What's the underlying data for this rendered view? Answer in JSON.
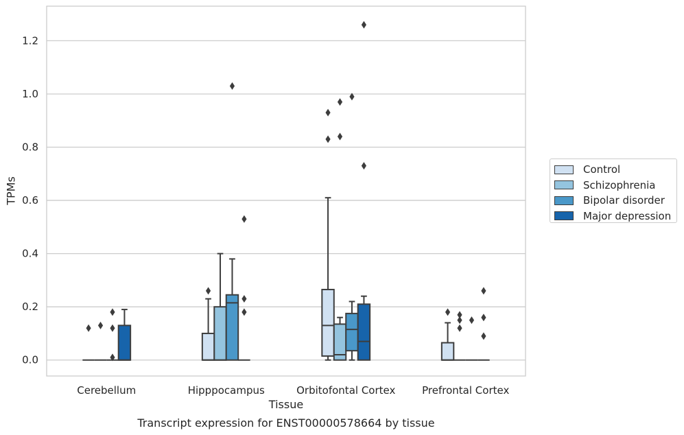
{
  "chart_data": {
    "type": "box",
    "caption": "Transcript expression for ENST00000578664 by tissue",
    "xlabel": "Tissue",
    "ylabel": "TPMs",
    "ylim": [
      -0.06,
      1.33
    ],
    "yticks": [
      "0.0",
      "0.2",
      "0.4",
      "0.6",
      "0.8",
      "1.0",
      "1.2"
    ],
    "ytick_values": [
      0.0,
      0.2,
      0.4,
      0.6,
      0.8,
      1.0,
      1.2
    ],
    "grid": true,
    "legend_position": "right",
    "categories": [
      "Cerebellum",
      "Hipppocampus",
      "Orbitofontal Cortex",
      "Prefrontal Cortex"
    ],
    "series": [
      {
        "name": "Control",
        "color": "#d0e1f2",
        "boxes": [
          {
            "q1": 0,
            "median": 0,
            "q3": 0,
            "whislo": 0,
            "whishi": 0,
            "fliers": [
              0.12
            ]
          },
          {
            "q1": 0,
            "median": 0,
            "q3": 0.1,
            "whislo": 0,
            "whishi": 0.23,
            "fliers": [
              0.26
            ]
          },
          {
            "q1": 0.015,
            "median": 0.13,
            "q3": 0.265,
            "whislo": 0,
            "whishi": 0.61,
            "fliers": [
              0.83,
              0.93
            ]
          },
          {
            "q1": 0,
            "median": 0,
            "q3": 0.065,
            "whislo": 0,
            "whishi": 0.14,
            "fliers": [
              0.18
            ]
          }
        ]
      },
      {
        "name": "Schizophrenia",
        "color": "#94c4df",
        "boxes": [
          {
            "q1": 0,
            "median": 0,
            "q3": 0,
            "whislo": 0,
            "whishi": 0,
            "fliers": [
              0.13
            ]
          },
          {
            "q1": 0,
            "median": 0,
            "q3": 0.2,
            "whislo": 0,
            "whishi": 0.4,
            "fliers": []
          },
          {
            "q1": 0,
            "median": 0.02,
            "q3": 0.135,
            "whislo": 0,
            "whishi": 0.16,
            "fliers": [
              0.84,
              0.97
            ]
          },
          {
            "q1": 0,
            "median": 0,
            "q3": 0,
            "whislo": 0,
            "whishi": 0,
            "fliers": [
              0.12,
              0.15,
              0.17
            ]
          }
        ]
      },
      {
        "name": "Bipolar disorder",
        "color": "#4a98c9",
        "boxes": [
          {
            "q1": 0,
            "median": 0,
            "q3": 0,
            "whislo": 0,
            "whishi": 0,
            "fliers": [
              0.01,
              0.12,
              0.18
            ]
          },
          {
            "q1": 0,
            "median": 0.215,
            "q3": 0.245,
            "whislo": 0,
            "whishi": 0.38,
            "fliers": [
              1.03
            ]
          },
          {
            "q1": 0.035,
            "median": 0.115,
            "q3": 0.175,
            "whislo": 0,
            "whishi": 0.22,
            "fliers": [
              0.99
            ]
          },
          {
            "q1": 0,
            "median": 0,
            "q3": 0,
            "whislo": 0,
            "whishi": 0,
            "fliers": [
              0.15
            ]
          }
        ]
      },
      {
        "name": "Major depression",
        "color": "#1764ab",
        "boxes": [
          {
            "q1": 0,
            "median": 0,
            "q3": 0.13,
            "whislo": 0,
            "whishi": 0.19,
            "fliers": []
          },
          {
            "q1": 0,
            "median": 0,
            "q3": 0,
            "whislo": 0,
            "whishi": 0,
            "fliers": [
              0.18,
              0.23,
              0.53
            ]
          },
          {
            "q1": 0,
            "median": 0.07,
            "q3": 0.21,
            "whislo": 0,
            "whishi": 0.24,
            "fliers": [
              0.73,
              1.26
            ]
          },
          {
            "q1": 0,
            "median": 0,
            "q3": 0,
            "whislo": 0,
            "whishi": 0,
            "fliers": [
              0.09,
              0.16,
              0.26
            ]
          }
        ]
      }
    ]
  }
}
